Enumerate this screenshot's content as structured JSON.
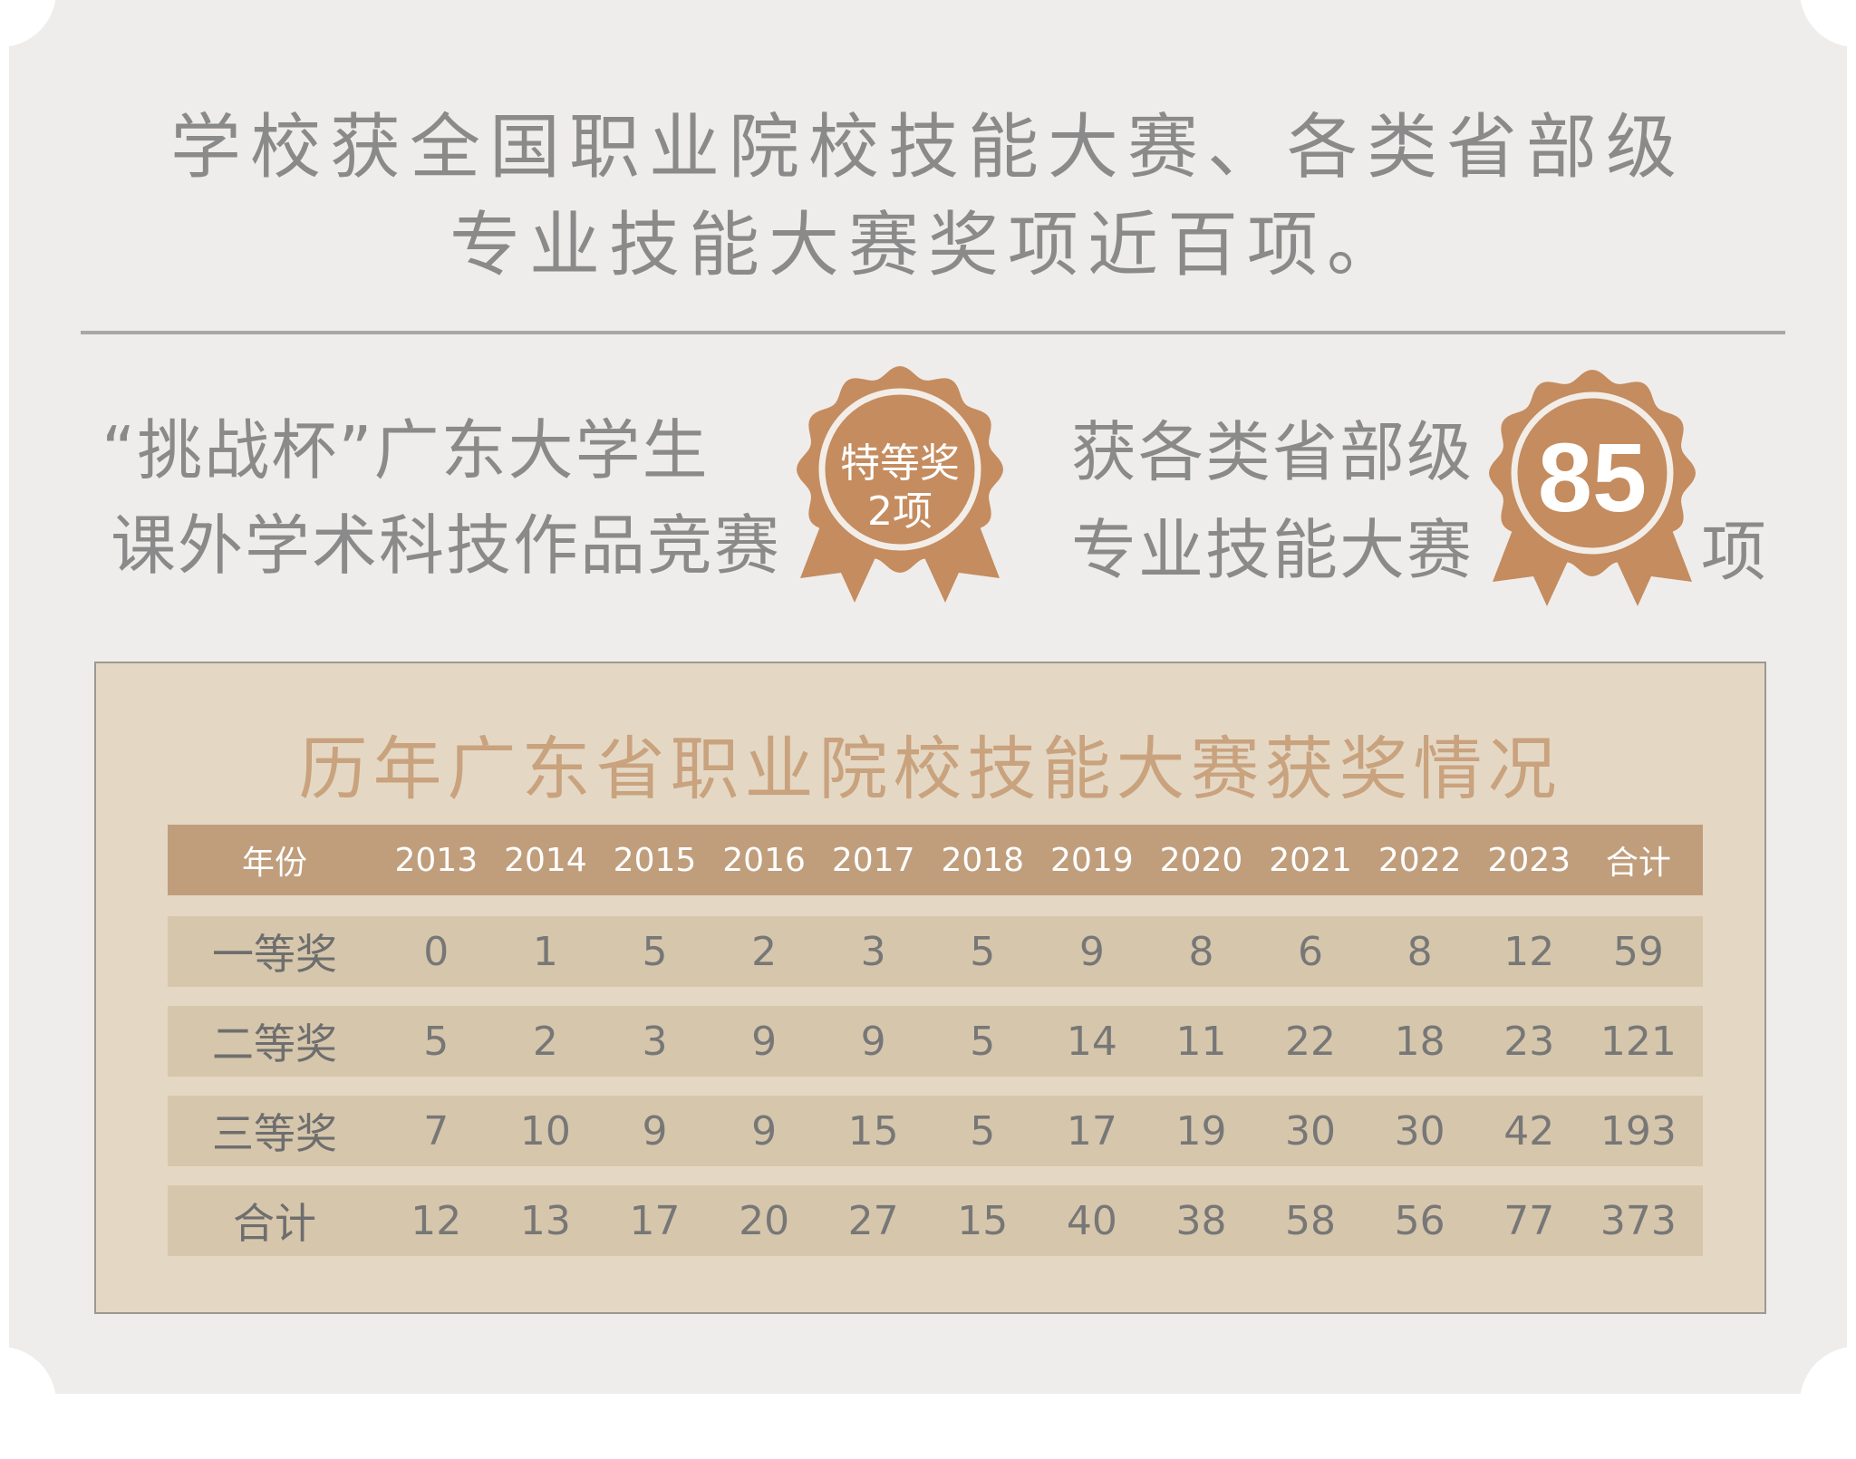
{
  "headline": {
    "line1": "学校获全国职业院校技能大赛、各类省部级",
    "line2": "专业技能大赛奖项近百项。"
  },
  "left_block": {
    "line1": "“挑战杯”广东大学生",
    "line2": "课外学术科技作品竞赛",
    "badge_line1": "特等奖",
    "badge_line2": "2项"
  },
  "right_block": {
    "line1": "获各类省部级",
    "line2": "专业技能大赛",
    "badge_number": "85",
    "unit": "项"
  },
  "colors": {
    "badge": "#c48c5f",
    "header_row": "#c09e7c",
    "body_row": "#d6c6ab",
    "table_bg": "#e4d8c4",
    "table_title": "#c9a27e"
  },
  "table": {
    "title": "历年广东省职业院校技能大赛获奖情况",
    "header": [
      "年份",
      "2013",
      "2014",
      "2015",
      "2016",
      "2017",
      "2018",
      "2019",
      "2020",
      "2021",
      "2022",
      "2023",
      "合计"
    ],
    "rows": [
      [
        "一等奖",
        "0",
        "1",
        "5",
        "2",
        "3",
        "5",
        "9",
        "8",
        "6",
        "8",
        "12",
        "59"
      ],
      [
        "二等奖",
        "5",
        "2",
        "3",
        "9",
        "9",
        "5",
        "14",
        "11",
        "22",
        "18",
        "23",
        "121"
      ],
      [
        "三等奖",
        "7",
        "10",
        "9",
        "9",
        "15",
        "5",
        "17",
        "19",
        "30",
        "30",
        "42",
        "193"
      ],
      [
        "合计",
        "12",
        "13",
        "17",
        "20",
        "27",
        "15",
        "40",
        "38",
        "58",
        "56",
        "77",
        "373"
      ]
    ]
  }
}
